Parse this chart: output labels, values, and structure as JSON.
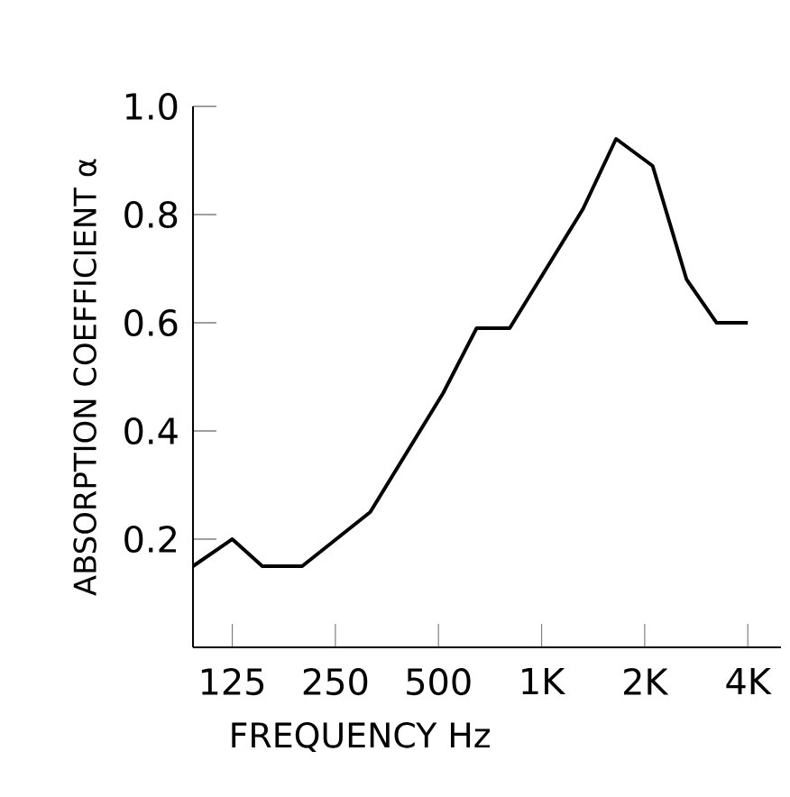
{
  "chart_data": {
    "type": "line",
    "xlabel": "FREQUENCY  Hz",
    "ylabel": "ABSORPTION COEFFICIENT α",
    "log": "x",
    "x": [
      96,
      125,
      153,
      200,
      316,
      516,
      646,
      807,
      1320,
      1650,
      2110,
      2650,
      3240,
      4000
    ],
    "values": [
      0.15,
      0.2,
      0.15,
      0.15,
      0.25,
      0.47,
      0.59,
      0.59,
      0.81,
      0.94,
      0.89,
      0.68,
      0.6,
      0.6
    ],
    "color": "#000000",
    "marker": "none",
    "line_style": "solid",
    "grid": false,
    "xlim": [
      96,
      5000
    ],
    "ylim": [
      0,
      1.0
    ],
    "xticks": [
      125,
      250,
      500,
      {
        "value": 1000,
        "label": "1K"
      },
      {
        "value": 2000,
        "label": "2K"
      },
      {
        "value": 4000,
        "label": "4K"
      }
    ],
    "yticks": [
      0.2,
      0.4,
      0.6,
      0.8,
      {
        "value": 1.0,
        "label": "1.0"
      }
    ]
  }
}
